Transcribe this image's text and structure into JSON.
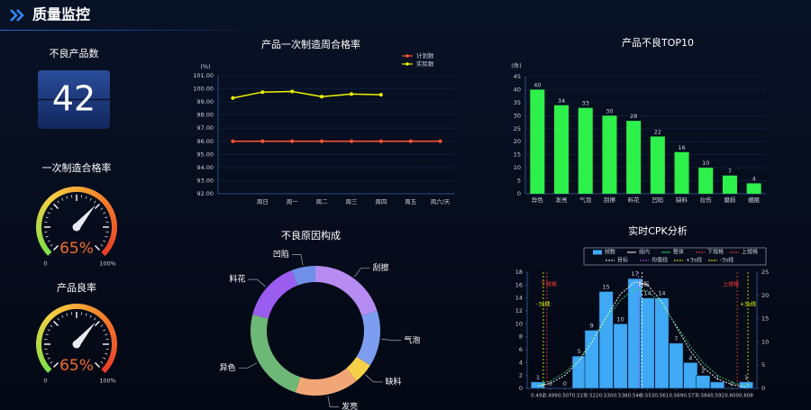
{
  "header": {
    "title": "质量监控"
  },
  "kpi": {
    "title": "不良产品数",
    "value": 42
  },
  "chart_data": [
    {
      "type": "gauge",
      "title": "一次制造合格率",
      "values": [
        65
      ],
      "value_labels": [
        "65%"
      ],
      "ylim": [
        0,
        100
      ],
      "yticks": [
        0,
        {
          "value": 100,
          "label": "100%"
        }
      ]
    },
    {
      "type": "gauge",
      "title": "产品良率",
      "values": [
        65
      ],
      "value_labels": [
        "65%"
      ],
      "ylim": [
        0,
        100
      ],
      "yticks": [
        0,
        {
          "value": 100,
          "label": "100%"
        }
      ]
    },
    {
      "type": "line",
      "title": "产品一次制造周合格率",
      "y_label": "(%)",
      "categories": [
        null,
        "周日",
        "周一",
        "周二",
        "周三",
        "周四",
        "周五",
        "周六/天"
      ],
      "series": [
        {
          "name": "计划数",
          "color": "#ff5533",
          "values": [
            96,
            96,
            96,
            96,
            96,
            96,
            96,
            96
          ]
        },
        {
          "name": "实际数",
          "color": "#f2f200",
          "values": [
            99.3,
            99.75,
            99.8,
            99.4,
            99.6,
            99.55,
            null,
            null
          ]
        }
      ],
      "ylim": [
        92,
        101
      ],
      "yticks": [
        {
          "value": 92,
          "label": "92.00"
        },
        {
          "value": 93,
          "label": "93.00"
        },
        {
          "value": 94,
          "label": "94.00"
        },
        {
          "value": 95,
          "label": "95.00"
        },
        {
          "value": 96,
          "label": "96.00"
        },
        {
          "value": 97,
          "label": "97.00"
        },
        {
          "value": 98,
          "label": "98.00"
        },
        {
          "value": 99,
          "label": "99.00"
        },
        {
          "value": 100,
          "label": "100.00"
        },
        {
          "value": 101,
          "label": "101.00"
        }
      ],
      "grid": true
    },
    {
      "type": "bar",
      "title": "产品不良TOP10",
      "y_label": "(件)",
      "categories": [
        "异色",
        "发亮",
        "气泡",
        "刮擦",
        "料花",
        "凹陷",
        "缺料",
        "拉伤",
        "磨损",
        "蠕痕"
      ],
      "values": [
        40,
        34,
        33,
        30,
        28,
        22,
        16,
        10,
        7,
        4
      ],
      "color": "#2ef04a",
      "ylim": [
        0,
        45
      ],
      "yticks": [
        0,
        5,
        10,
        15,
        20,
        25,
        30,
        35,
        40,
        45
      ],
      "grid": true
    },
    {
      "type": "pie",
      "title": "不良原因构成",
      "donut": true,
      "categories": [
        "刮擦",
        "气泡",
        "缺料",
        "发亮",
        "异色",
        "料花",
        "凹陷"
      ],
      "values": [
        20,
        14,
        5,
        16,
        24,
        15,
        6
      ],
      "colors": [
        "#b78cf2",
        "#7d9ef0",
        "#f7d04a",
        "#f0a676",
        "#6db877",
        "#9b5cf0",
        "#6f8fe8"
      ]
    },
    {
      "type": "histogram",
      "title": "实时CPK分析",
      "x": [
        0.492,
        0.499,
        0.507,
        0.515,
        0.522,
        0.53,
        0.538,
        0.546,
        0.553,
        0.561,
        0.569,
        0.577,
        0.584,
        0.592,
        0.6,
        0.608
      ],
      "series": [
        {
          "name": "频数",
          "type": "bar",
          "color": "#3fa9f5",
          "values": [
            1,
            0,
            0,
            5,
            9,
            15,
            10,
            17,
            14,
            14,
            7,
            4,
            2,
            1,
            0,
            1
          ]
        },
        {
          "name": "组内",
          "type": "line",
          "axis": "y2",
          "color": "#ffffff",
          "values": [
            0.5,
            1.1,
            2.8,
            5.9,
            9.9,
            15.3,
            20.3,
            22.9,
            22.3,
            18.6,
            13.3,
            8.0,
            4.5,
            2.0,
            0.8,
            0.3
          ]
        },
        {
          "name": "整体",
          "type": "line",
          "axis": "y2",
          "color": "#2ecc71",
          "values": [
            0.8,
            1.6,
            3.4,
            6.4,
            10.1,
            14.8,
            19.0,
            21.4,
            21.0,
            18.1,
            13.6,
            9.0,
            5.5,
            2.8,
            1.3,
            0.5
          ]
        }
      ],
      "reference_lines": [
        {
          "name": "下规格",
          "x": 0.497,
          "color": "#ff3b3b",
          "annotated": true
        },
        {
          "name": "上规格",
          "x": 0.603,
          "color": "#ff3b3b",
          "annotated": true
        },
        {
          "name": "目标",
          "x": 0.55,
          "color": "#ffffff",
          "annotated": true
        },
        {
          "name": "均值线",
          "x": 0.548,
          "color": "#b04cff",
          "annotated": false
        },
        {
          "name": "+3s线",
          "x": 0.609,
          "color": "#e6ff00",
          "annotated": true
        },
        {
          "name": "-3s线",
          "x": 0.495,
          "color": "#e6ff00",
          "annotated": true
        }
      ],
      "xlim": [
        0.486,
        0.614
      ],
      "xticks": [
        0.492,
        0.499,
        0.507,
        0.515,
        0.522,
        {
          "value": 0.53,
          "label": "0.530"
        },
        0.538,
        0.546,
        0.553,
        0.561,
        0.569,
        0.577,
        0.584,
        0.592,
        {
          "value": 0.6,
          "label": "0.600"
        },
        0.608
      ],
      "ylim": [
        0,
        18
      ],
      "yticks": [
        0,
        2,
        4,
        6,
        8,
        10,
        12,
        14,
        16,
        18
      ],
      "y2lim": [
        0,
        25
      ],
      "y2ticks": [
        0,
        5,
        10,
        15,
        20,
        25
      ]
    }
  ]
}
